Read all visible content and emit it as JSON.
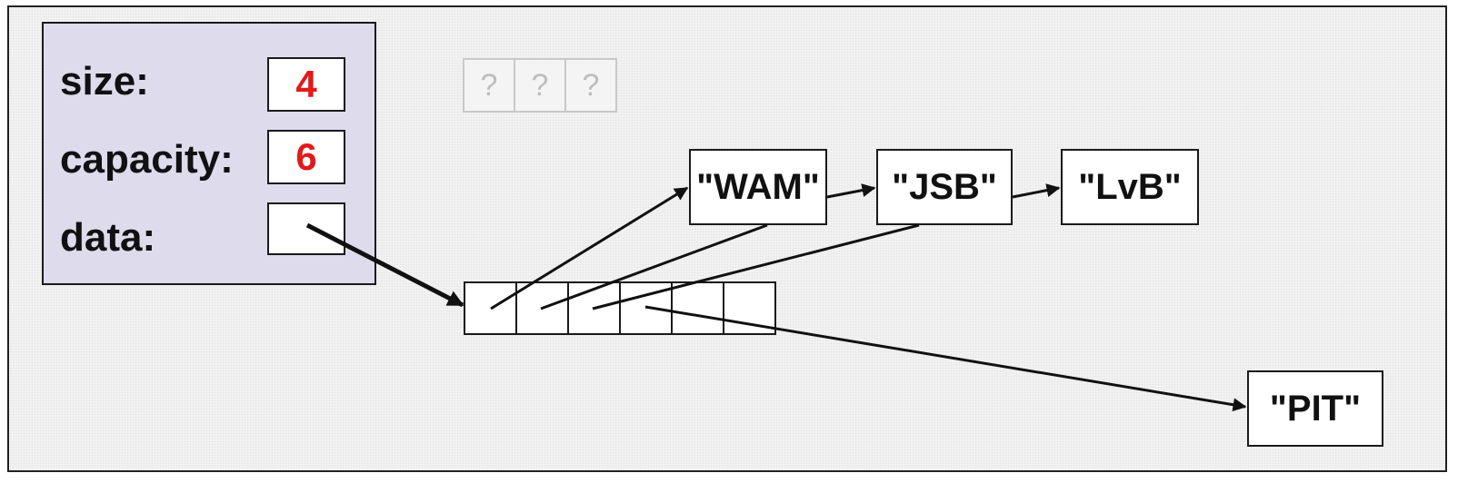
{
  "struct": {
    "size_label": "size:",
    "size_value": "4",
    "capacity_label": "capacity:",
    "capacity_value": "6",
    "data_label": "data:",
    "data_value": ""
  },
  "ghost_cells": [
    "?",
    "?",
    "?"
  ],
  "array_slots": 6,
  "strings": {
    "wam": "\"WAM\"",
    "jsb": "\"JSB\"",
    "lvb": "\"LvB\"",
    "pit": "\"PIT\""
  },
  "colors": {
    "struct_background": "#dddbec",
    "value_text": "#e11a1a",
    "ghost": "#c8c8c8"
  }
}
